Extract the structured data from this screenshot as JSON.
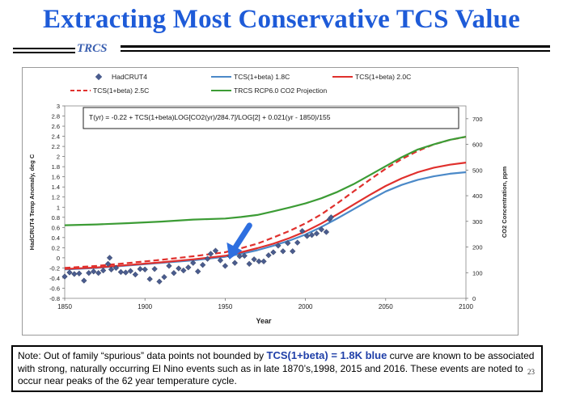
{
  "slide": {
    "title": "Extracting Most Conservative TCS Value",
    "subtitle": "TRCS",
    "page_number": "23"
  },
  "note": {
    "part1": "Note: Out of family “spurious” data points not bounded by ",
    "highlight": "TCS(1+beta) = 1.8K blue",
    "part2": " curve are known to be associated with strong, naturally occurring El Nino events such as in late 1870’s,1998, 2015 and 2016. These events are noted to occur near peaks of the 62 year temperature cycle."
  },
  "colors": {
    "title": "#1e5bd8",
    "hadcrut": "#4a5c8e",
    "blue": "#4b89c8",
    "red": "#e0302d",
    "green": "#3c9c35",
    "arrow": "#2e6fe0"
  },
  "chart_data": {
    "type": "line",
    "formula": "T(yr) = -0.22 + TCS(1+beta)LOG[CO2(yr)/284.7]/LOG[2] + 0.021(yr - 1850)/155",
    "xlabel": "Year",
    "ylabel": "HadCRUT4 Temp Anomaly, deg C",
    "y2label": "CO2 Concentration, ppm",
    "xlim": [
      1850,
      2100
    ],
    "ylim": [
      -0.8,
      3.0
    ],
    "y2lim": [
      0,
      750
    ],
    "x_ticks": [
      "1850",
      "1900",
      "1950",
      "2000",
      "2050",
      "2100"
    ],
    "y_ticks": [
      "-0.8",
      "-0.6",
      "-0.4",
      "-0.2",
      "0",
      "0.2",
      "0.4",
      "0.6",
      "0.8",
      "1",
      "1.2",
      "1.4",
      "1.6",
      "1.8",
      "2",
      "2.2",
      "2.4",
      "2.6",
      "2.8",
      "3"
    ],
    "y2_ticks": [
      "0",
      "100",
      "200",
      "300",
      "400",
      "500",
      "600",
      "700"
    ],
    "legend": [
      "HadCRUT4",
      "TCS(1+beta)   1.8C",
      "TCS(1+beta)   2.0C",
      "TCS(1+beta)  2.5C",
      "TRCS RCP6.0 CO2 Projection"
    ],
    "annotation": {
      "label": "downward arrow",
      "x": 1953,
      "y": 0.0
    },
    "series": [
      {
        "name": "TCS(1+beta) 1.8C",
        "style": "solid",
        "color": "blue",
        "axis": "left",
        "x": [
          1850,
          1870,
          1890,
          1910,
          1930,
          1950,
          1960,
          1970,
          1980,
          1990,
          2000,
          2010,
          2020,
          2030,
          2040,
          2050,
          2060,
          2070,
          2080,
          2090,
          2100
        ],
        "y": [
          -0.23,
          -0.2,
          -0.15,
          -0.1,
          -0.05,
          0.02,
          0.08,
          0.15,
          0.24,
          0.34,
          0.46,
          0.61,
          0.78,
          0.96,
          1.14,
          1.31,
          1.44,
          1.54,
          1.61,
          1.66,
          1.69
        ]
      },
      {
        "name": "TCS(1+beta) 2.0C",
        "style": "solid",
        "color": "red",
        "axis": "left",
        "x": [
          1850,
          1870,
          1890,
          1910,
          1930,
          1950,
          1960,
          1970,
          1980,
          1990,
          2000,
          2010,
          2020,
          2030,
          2040,
          2050,
          2060,
          2070,
          2080,
          2090,
          2100
        ],
        "y": [
          -0.22,
          -0.19,
          -0.14,
          -0.09,
          -0.03,
          0.04,
          0.11,
          0.19,
          0.28,
          0.39,
          0.52,
          0.68,
          0.86,
          1.05,
          1.24,
          1.42,
          1.57,
          1.69,
          1.78,
          1.84,
          1.88
        ]
      },
      {
        "name": "TCS(1+beta) 2.5C",
        "style": "dashed",
        "color": "red",
        "axis": "left",
        "x": [
          1850,
          1870,
          1890,
          1910,
          1930,
          1950,
          1960,
          1970,
          1980,
          1990,
          2000,
          2010,
          2020,
          2030,
          2040,
          2050,
          2060,
          2070,
          2080,
          2090,
          2100
        ],
        "y": [
          -0.2,
          -0.16,
          -0.1,
          -0.04,
          0.03,
          0.11,
          0.19,
          0.28,
          0.4,
          0.53,
          0.68,
          0.86,
          1.08,
          1.31,
          1.54,
          1.76,
          1.95,
          2.11,
          2.24,
          2.33,
          2.39
        ]
      },
      {
        "name": "TRCS RCP6.0 CO2 Projection",
        "style": "solid",
        "color": "green",
        "axis": "right",
        "x": [
          1850,
          1870,
          1890,
          1910,
          1930,
          1950,
          1960,
          1970,
          1980,
          1990,
          2000,
          2010,
          2020,
          2030,
          2040,
          2050,
          2060,
          2070,
          2080,
          2090,
          2100
        ],
        "y": [
          285,
          288,
          293,
          299,
          307,
          311,
          317,
          325,
          339,
          354,
          370,
          390,
          415,
          445,
          480,
          515,
          550,
          580,
          600,
          618,
          630
        ]
      },
      {
        "name": "HadCRUT4",
        "style": "markers",
        "color": "hadcrut",
        "axis": "left",
        "x": [
          1850,
          1853,
          1856,
          1859,
          1862,
          1865,
          1868,
          1871,
          1874,
          1877,
          1878,
          1879,
          1882,
          1885,
          1888,
          1891,
          1894,
          1897,
          1900,
          1903,
          1906,
          1909,
          1912,
          1915,
          1918,
          1921,
          1924,
          1927,
          1930,
          1933,
          1936,
          1939,
          1941,
          1944,
          1947,
          1950,
          1953,
          1956,
          1959,
          1962,
          1965,
          1968,
          1971,
          1974,
          1977,
          1980,
          1983,
          1986,
          1989,
          1992,
          1995,
          1998,
          2001,
          2004,
          2007,
          2010,
          2013,
          2015,
          2016
        ],
        "y": [
          -0.37,
          -0.29,
          -0.32,
          -0.31,
          -0.45,
          -0.3,
          -0.27,
          -0.3,
          -0.25,
          -0.12,
          0.0,
          -0.23,
          -0.2,
          -0.28,
          -0.29,
          -0.26,
          -0.33,
          -0.22,
          -0.23,
          -0.42,
          -0.22,
          -0.47,
          -0.38,
          -0.16,
          -0.3,
          -0.21,
          -0.25,
          -0.19,
          -0.1,
          -0.27,
          -0.14,
          -0.02,
          0.08,
          0.14,
          -0.05,
          -0.16,
          0.03,
          -0.1,
          0.03,
          0.04,
          -0.12,
          -0.03,
          -0.07,
          -0.07,
          0.05,
          0.11,
          0.24,
          0.13,
          0.29,
          0.13,
          0.3,
          0.53,
          0.43,
          0.45,
          0.48,
          0.56,
          0.51,
          0.76,
          0.8
        ]
      }
    ]
  }
}
